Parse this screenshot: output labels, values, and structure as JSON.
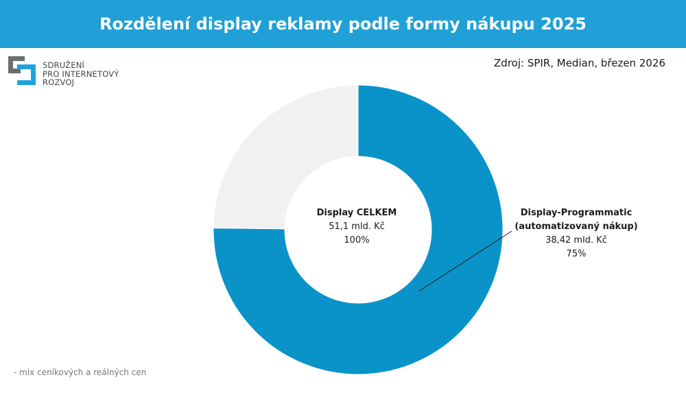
{
  "header": {
    "title": "Rozdělení display reklamy podle formy nákupu 2025"
  },
  "logo": {
    "lines": [
      "SDRUŽENÍ",
      "PRO INTERNETOVÝ",
      "ROZVOJ"
    ]
  },
  "source": "Zdroj: SPIR, Median, březen 2026",
  "center": {
    "title": "Display CELKEM",
    "value": "51,1 mld. Kč",
    "percent": "100%"
  },
  "footnote": "- mix ceníkových a reálných cen",
  "colors": {
    "header": "#20a0d6",
    "programmatic": "#0a93c8",
    "other": "#f1f1f1",
    "logo_dark": "#6d6e71",
    "logo_blue": "#1ea3dc"
  },
  "chart_data": {
    "type": "pie",
    "variant": "donut",
    "title": "Rozdělení display reklamy podle formy nákupu 2025",
    "slices": [
      {
        "label_line1": "Display-Programmatic",
        "label_line2": "(automatizovaný nákup)",
        "value": 38.42,
        "value_text": "38,42 mld. Kč",
        "percent": 75,
        "percent_text": "75%",
        "color": "#0a93c8"
      },
      {
        "label_line1": "",
        "label_line2": "",
        "value": 12.68,
        "value_text": "",
        "percent": 25,
        "percent_text": "",
        "color": "#f1f1f1"
      }
    ],
    "total": 51.1,
    "legend": "none"
  }
}
